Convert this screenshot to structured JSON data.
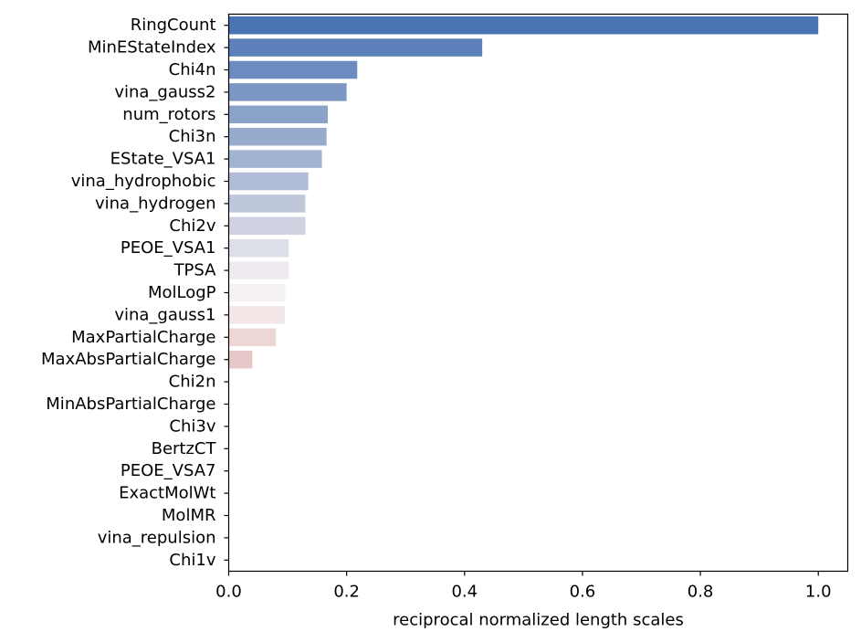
{
  "chart_data": {
    "type": "bar",
    "orientation": "horizontal",
    "xlabel": "reciprocal normalized length scales",
    "xlim": [
      0.0,
      1.05
    ],
    "xticks": [
      0.0,
      0.2,
      0.4,
      0.6,
      0.8,
      1.0
    ],
    "xtick_labels": [
      "0.0",
      "0.2",
      "0.4",
      "0.6",
      "0.8",
      "1.0"
    ],
    "grid": false,
    "legend": "none",
    "colormap": "blue-to-red diverging (vlag)",
    "categories": [
      "RingCount",
      "MinEStateIndex",
      "Chi4n",
      "vina_gauss2",
      "num_rotors",
      "Chi3n",
      "EState_VSA1",
      "vina_hydrophobic",
      "vina_hydrogen",
      "Chi2v",
      "PEOE_VSA1",
      "TPSA",
      "MolLogP",
      "vina_gauss1",
      "MaxPartialCharge",
      "MaxAbsPartialCharge",
      "Chi2n",
      "MinAbsPartialCharge",
      "Chi3v",
      "BertzCT",
      "PEOE_VSA7",
      "ExactMolWt",
      "MolMR",
      "vina_repulsion",
      "Chi1v"
    ],
    "values": [
      1.0,
      0.43,
      0.218,
      0.2,
      0.168,
      0.166,
      0.158,
      0.135,
      0.13,
      0.13,
      0.102,
      0.102,
      0.096,
      0.095,
      0.08,
      0.04,
      0.0,
      0.0,
      0.0,
      0.0,
      0.0,
      0.0,
      0.0,
      0.0,
      0.0
    ],
    "colors": [
      "#4a74b4",
      "#5c80ba",
      "#6c8cbf",
      "#7c97c3",
      "#8ba3c8",
      "#97abcd",
      "#a2b3d1",
      "#b1bdd6",
      "#bfc7db",
      "#cfd3e1",
      "#dcdfe7",
      "#eeeaef",
      "#f7f2f2",
      "#f3e7e7",
      "#ecd6d6",
      "#e6c8c9",
      "#e1bdbe",
      "#dcb0b1",
      "#d6a3a4",
      "#d19697",
      "#cb898a",
      "#c57c7e",
      "#bf6f71",
      "#b96265",
      "#b35558"
    ]
  }
}
